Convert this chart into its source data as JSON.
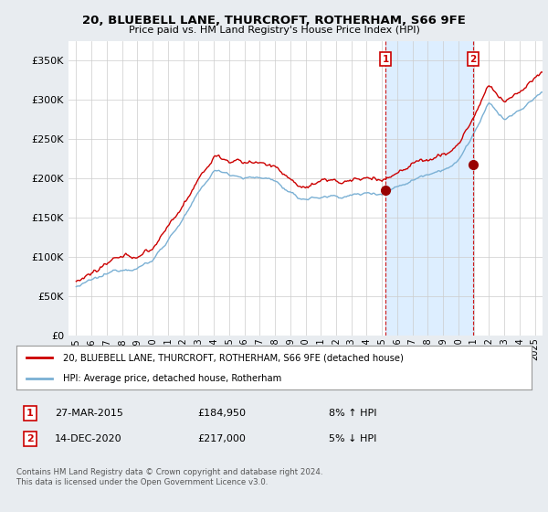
{
  "title": "20, BLUEBELL LANE, THURCROFT, ROTHERHAM, S66 9FE",
  "subtitle": "Price paid vs. HM Land Registry's House Price Index (HPI)",
  "ytick_values": [
    0,
    50000,
    100000,
    150000,
    200000,
    250000,
    300000,
    350000
  ],
  "ylim": [
    0,
    375000
  ],
  "xlim_start": 1994.5,
  "xlim_end": 2025.5,
  "transaction1": {
    "date_num": 2015.23,
    "price": 184950,
    "label": "1"
  },
  "transaction2": {
    "date_num": 2020.95,
    "price": 217000,
    "label": "2"
  },
  "hpi_line_color": "#7ab0d4",
  "price_line_color": "#cc0000",
  "shade_color": "#ddeeff",
  "background_color": "#e8ecf0",
  "plot_bg_color": "#ffffff",
  "legend_label1": "20, BLUEBELL LANE, THURCROFT, ROTHERHAM, S66 9FE (detached house)",
  "legend_label2": "HPI: Average price, detached house, Rotherham",
  "table_rows": [
    {
      "num": "1",
      "date": "27-MAR-2015",
      "price": "£184,950",
      "hpi": "8% ↑ HPI"
    },
    {
      "num": "2",
      "date": "14-DEC-2020",
      "price": "£217,000",
      "hpi": "5% ↓ HPI"
    }
  ],
  "footnote": "Contains HM Land Registry data © Crown copyright and database right 2024.\nThis data is licensed under the Open Government Licence v3.0."
}
